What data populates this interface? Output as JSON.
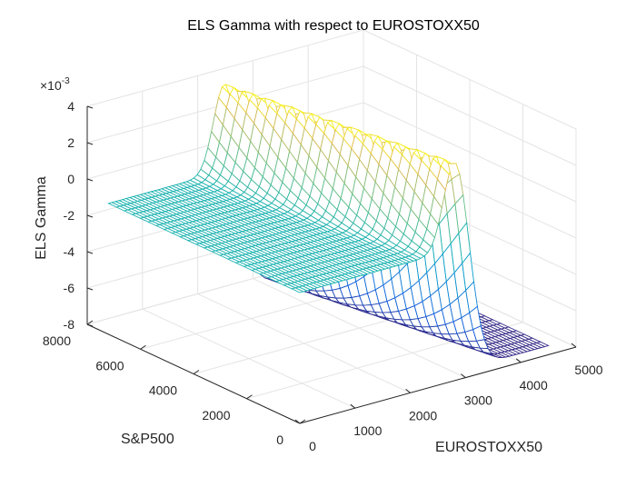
{
  "chart_data": {
    "type": "surface",
    "title": "ELS Gamma with respect to EUROSTOXX50",
    "xlabel": "EUROSTOXX50",
    "ylabel": "S&P500",
    "zlabel": "ELS Gamma",
    "x_ticks": [
      "0",
      "1000",
      "2000",
      "3000",
      "4000",
      "5000"
    ],
    "y_ticks": [
      "0",
      "2000",
      "4000",
      "6000",
      "8000"
    ],
    "z_ticks": [
      "-8",
      "-6",
      "-4",
      "-2",
      "0",
      "2",
      "4"
    ],
    "z_exponent_base": "×10",
    "z_exponent_power": "-3",
    "xlim": [
      0,
      5000
    ],
    "ylim": [
      0,
      8000
    ],
    "zlim": [
      -0.008,
      0.004
    ],
    "grid": true,
    "colormap": "parula",
    "surface": {
      "x_range": [
        0,
        4500
      ],
      "y_range": [
        0,
        7200
      ],
      "z_at_low_x": -0.0008,
      "z_peak": 0.004,
      "peak_x_at_y0": 2800,
      "peak_x_at_ymax": 2100,
      "z_at_high_x": -0.0075
    }
  }
}
